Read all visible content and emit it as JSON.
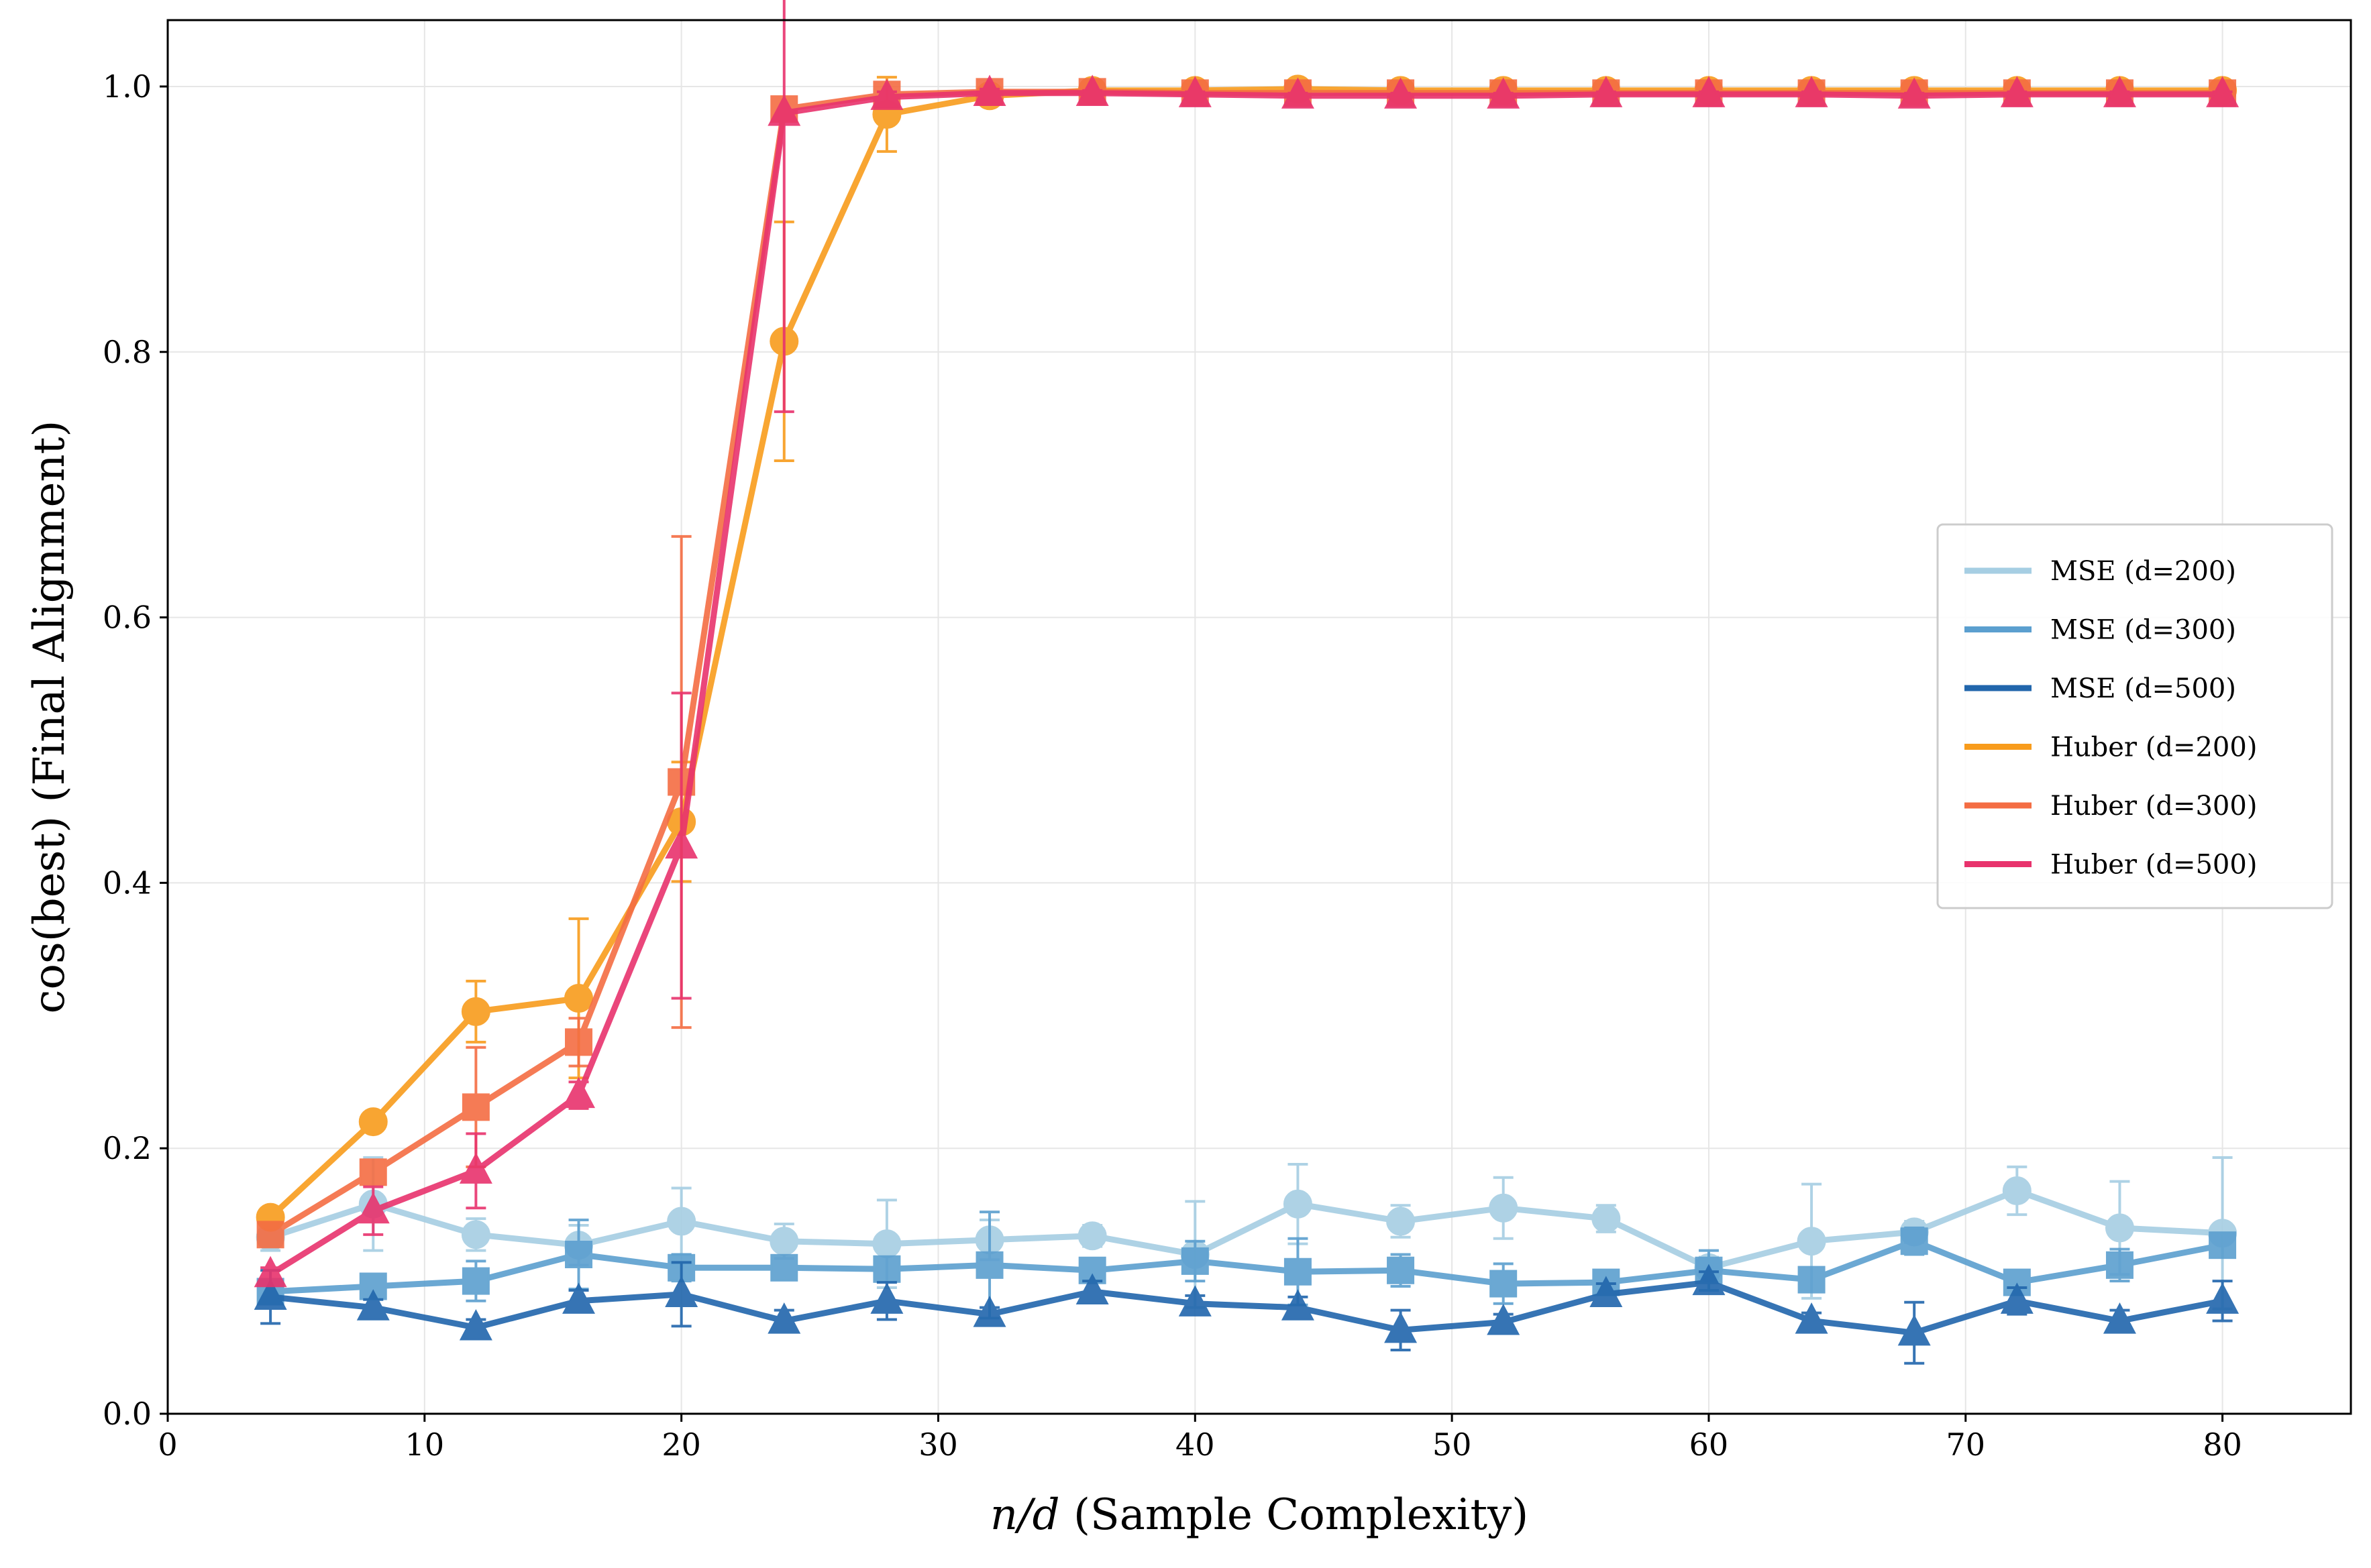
{
  "chart_data": {
    "type": "line",
    "xlabel_italic": "n/d",
    "xlabel_rest": " (Sample Complexity)",
    "ylabel": "cos(best) (Final Alignment)",
    "xlim": [
      0,
      85
    ],
    "ylim": [
      0,
      1.05
    ],
    "xticks": [
      0,
      10,
      20,
      30,
      40,
      50,
      60,
      70,
      80
    ],
    "yticks": [
      0.0,
      0.2,
      0.4,
      0.6,
      0.8,
      1.0
    ],
    "xtick_labels": [
      "0",
      "10",
      "20",
      "30",
      "40",
      "50",
      "60",
      "70",
      "80"
    ],
    "ytick_labels": [
      "0.0",
      "0.2",
      "0.4",
      "0.6",
      "0.8",
      "1.0"
    ],
    "grid": true,
    "legend_position": "center-right",
    "x": [
      4,
      8,
      12,
      16,
      20,
      24,
      28,
      32,
      36,
      40,
      44,
      48,
      52,
      56,
      60,
      64,
      68,
      72,
      76,
      80
    ],
    "series": [
      {
        "name": "MSE (d=200)",
        "color": "#a6cee3",
        "marker": "circle",
        "values": [
          0.133,
          0.158,
          0.135,
          0.127,
          0.145,
          0.13,
          0.128,
          0.131,
          0.134,
          0.12,
          0.158,
          0.145,
          0.155,
          0.147,
          0.11,
          0.13,
          0.137,
          0.168,
          0.14,
          0.136
        ],
        "errors": [
          0.01,
          0.035,
          0.012,
          0.015,
          0.025,
          0.013,
          0.033,
          0.015,
          0.008,
          0.04,
          0.03,
          0.012,
          0.023,
          0.01,
          0.008,
          0.043,
          0.008,
          0.018,
          0.035,
          0.057
        ]
      },
      {
        "name": "MSE (d=300)",
        "color": "#5b9fcf",
        "marker": "square",
        "values": [
          0.092,
          0.096,
          0.1,
          0.12,
          0.11,
          0.11,
          0.109,
          0.112,
          0.108,
          0.115,
          0.107,
          0.108,
          0.098,
          0.099,
          0.108,
          0.101,
          0.13,
          0.099,
          0.112,
          0.127
        ],
        "errors": [
          0.008,
          0.008,
          0.015,
          0.026,
          0.01,
          0.006,
          0.008,
          0.04,
          0.006,
          0.015,
          0.025,
          0.012,
          0.015,
          0.008,
          0.015,
          0.008,
          0.01,
          0.008,
          0.012,
          0.008
        ]
      },
      {
        "name": "MSE (d=500)",
        "color": "#2166ac",
        "marker": "triangle",
        "values": [
          0.088,
          0.08,
          0.065,
          0.085,
          0.09,
          0.07,
          0.085,
          0.075,
          0.092,
          0.083,
          0.08,
          0.063,
          0.069,
          0.09,
          0.099,
          0.07,
          0.061,
          0.085,
          0.07,
          0.085
        ],
        "errors": [
          0.02,
          0.006,
          0.006,
          0.008,
          0.024,
          0.008,
          0.014,
          0.005,
          0.008,
          0.006,
          0.008,
          0.015,
          0.006,
          0.008,
          0.008,
          0.006,
          0.023,
          0.01,
          0.008,
          0.015
        ]
      },
      {
        "name": "Huber (d=200)",
        "color": "#f89c1c",
        "marker": "circle",
        "values": [
          0.148,
          0.22,
          0.303,
          0.313,
          0.446,
          0.808,
          0.979,
          0.993,
          0.997,
          0.997,
          0.998,
          0.997,
          0.997,
          0.997,
          0.997,
          0.997,
          0.997,
          0.997,
          0.997,
          0.997
        ],
        "errors": [
          0.005,
          0.005,
          0.023,
          0.06,
          0.045,
          0.09,
          0.028,
          0.004,
          0.002,
          0.002,
          0.002,
          0.002,
          0.002,
          0.002,
          0.002,
          0.002,
          0.002,
          0.002,
          0.002,
          0.002
        ]
      },
      {
        "name": "Huber (d=300)",
        "color": "#f46d43",
        "marker": "square",
        "values": [
          0.135,
          0.182,
          0.231,
          0.28,
          0.476,
          0.983,
          0.994,
          0.996,
          0.996,
          0.995,
          0.995,
          0.995,
          0.995,
          0.995,
          0.995,
          0.995,
          0.995,
          0.995,
          0.995,
          0.995
        ],
        "errors": [
          0.005,
          0.008,
          0.045,
          0.018,
          0.185,
          0.005,
          0.003,
          0.002,
          0.002,
          0.002,
          0.002,
          0.002,
          0.002,
          0.002,
          0.002,
          0.002,
          0.002,
          0.002,
          0.002,
          0.002
        ]
      },
      {
        "name": "Huber (d=500)",
        "color": "#e8336d",
        "marker": "triangle",
        "values": [
          0.105,
          0.153,
          0.183,
          0.24,
          0.428,
          0.98,
          0.992,
          0.995,
          0.995,
          0.994,
          0.993,
          0.993,
          0.993,
          0.994,
          0.994,
          0.994,
          0.993,
          0.994,
          0.994,
          0.994
        ],
        "errors": [
          0.005,
          0.018,
          0.028,
          0.01,
          0.115,
          0.225,
          0.004,
          0.003,
          0.002,
          0.002,
          0.002,
          0.002,
          0.002,
          0.002,
          0.002,
          0.002,
          0.002,
          0.002,
          0.002,
          0.002
        ]
      }
    ]
  }
}
